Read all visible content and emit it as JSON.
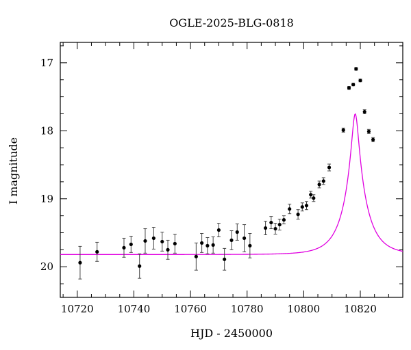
{
  "chart_data": {
    "type": "scatter",
    "title": "OGLE-2025-BLG-0818",
    "xlabel": "HJD - 2450000",
    "ylabel": "I magnitude",
    "xlim": [
      10714,
      10835
    ],
    "ylim": [
      20.45,
      16.7
    ],
    "y_inverted": true,
    "grid": false,
    "x_ticks": [
      10720,
      10740,
      10760,
      10780,
      10800,
      10820
    ],
    "x_tick_labels": [
      "10720",
      "10740",
      "10760",
      "10780",
      "10800",
      "10820"
    ],
    "y_ticks": [
      17,
      18,
      19,
      20
    ],
    "y_tick_labels": [
      "17",
      "18",
      "19",
      "20"
    ],
    "point_color": "#000000",
    "model_color": "#e000e0",
    "series": [
      {
        "kind": "points_with_errorbars",
        "x": [
          10721.0,
          10727.0,
          10736.5,
          10739.0,
          10742.0,
          10744.0,
          10747.0,
          10750.0,
          10752.0,
          10754.5,
          10762.0,
          10764.0,
          10766.0,
          10768.0,
          10770.0,
          10772.0,
          10774.5,
          10776.5,
          10779.0,
          10781.0,
          10786.5,
          10788.5,
          10790.0,
          10791.5,
          10793.0,
          10795.0,
          10798.0,
          10799.5,
          10801.0,
          10802.5,
          10803.5,
          10805.5,
          10807.0,
          10809.0,
          10814.0,
          10816.0,
          10817.5,
          10818.5,
          10820.0,
          10821.5,
          10823.0,
          10824.5
        ],
        "y": [
          19.94,
          19.78,
          19.72,
          19.67,
          19.99,
          19.62,
          19.58,
          19.63,
          19.75,
          19.66,
          19.85,
          19.65,
          19.69,
          19.68,
          19.46,
          19.89,
          19.61,
          19.49,
          19.58,
          19.69,
          19.43,
          19.35,
          19.44,
          19.38,
          19.31,
          19.15,
          19.23,
          19.12,
          19.1,
          18.94,
          18.99,
          18.79,
          18.74,
          18.54,
          17.99,
          17.37,
          17.32,
          17.09,
          17.26,
          17.72,
          18.01,
          18.13
        ],
        "err": [
          0.24,
          0.14,
          0.14,
          0.12,
          0.18,
          0.18,
          0.16,
          0.14,
          0.14,
          0.14,
          0.2,
          0.14,
          0.12,
          0.12,
          0.1,
          0.16,
          0.14,
          0.12,
          0.2,
          0.18,
          0.1,
          0.09,
          0.08,
          0.08,
          0.06,
          0.07,
          0.07,
          0.06,
          0.06,
          0.05,
          0.05,
          0.05,
          0.05,
          0.05,
          0.03,
          0.02,
          0.02,
          0.02,
          0.02,
          0.03,
          0.03,
          0.03
        ]
      },
      {
        "kind": "model_curve",
        "t0": 10818.2,
        "tE": 7.6,
        "u0": 0.15,
        "baseline": 19.82
      }
    ]
  }
}
